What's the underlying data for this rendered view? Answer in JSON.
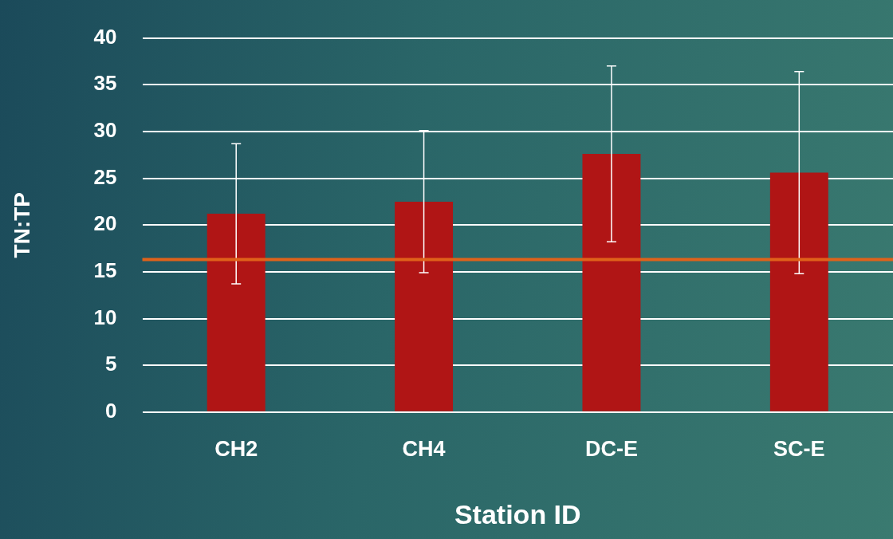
{
  "chart_data": {
    "type": "bar",
    "xlabel": "Station ID",
    "ylabel": "TN:TP",
    "categories": [
      "CH2",
      "CH4",
      "DC-E",
      "SC-E"
    ],
    "values": [
      21.2,
      22.5,
      27.6,
      25.6
    ],
    "color": "#b01515",
    "errors": [
      7.5,
      7.6,
      9.4,
      10.8
    ],
    "ylim": [
      0,
      40
    ],
    "yticks": [
      0,
      5,
      10,
      15,
      20,
      25,
      30,
      35,
      40
    ],
    "grid": "y",
    "ref_lines": [
      {
        "axis": "y",
        "value": 16.3,
        "color": "#e0621a",
        "line_style": "solid"
      }
    ]
  }
}
